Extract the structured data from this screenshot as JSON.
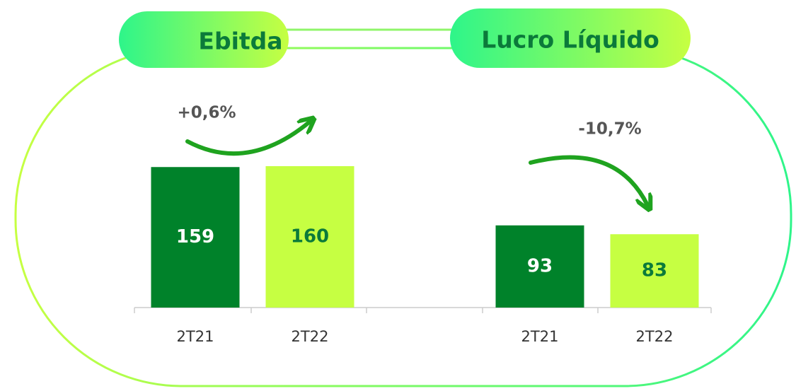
{
  "chart_data": [
    {
      "type": "bar",
      "title": "Ebitda",
      "annotation": "+0,6%",
      "categories": [
        "2T21",
        "2T22"
      ],
      "values": [
        159,
        160
      ],
      "colors": [
        "#00822a",
        "#c6ff42"
      ]
    },
    {
      "type": "bar",
      "title": "Lucro Líquido",
      "annotation": "-10,7%",
      "categories": [
        "2T21",
        "2T22"
      ],
      "values": [
        93,
        83
      ],
      "colors": [
        "#00822a",
        "#c6ff42"
      ]
    }
  ]
}
